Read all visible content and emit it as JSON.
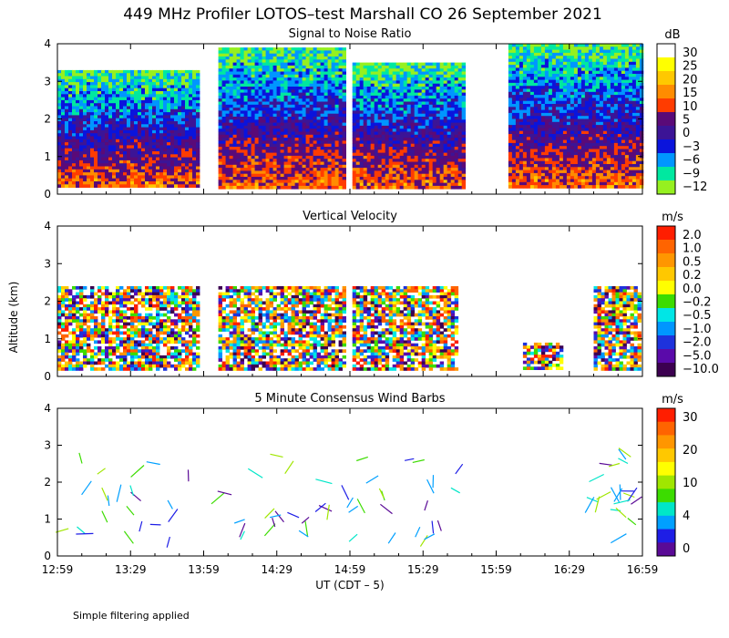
{
  "main_title": "449 MHz Profiler LOTOS–test Marshall CO 26 September 2021",
  "y_axis_label": "Altitude (km)",
  "x_axis_label": "UT  (CDT – 5)",
  "footer_note": "Simple filtering applied",
  "x_ticks": [
    "12:59",
    "13:29",
    "13:59",
    "14:29",
    "14:59",
    "15:29",
    "15:59",
    "16:29",
    "16:59"
  ],
  "y_ticks": [
    "0",
    "1",
    "2",
    "3",
    "4"
  ],
  "chart_data": [
    {
      "type": "heatmap",
      "title": "Signal to Noise Ratio",
      "unit": "dB",
      "ylim": [
        0,
        4
      ],
      "colorbar_labels": [
        "30",
        "25",
        "20",
        "15",
        "10",
        "5",
        "0",
        "−3",
        "−6",
        "−9",
        "−12"
      ],
      "colorbar_colors": [
        "#ffffff",
        "#ffff00",
        "#ffc800",
        "#ff8c00",
        "#ff3c00",
        "#5a0a78",
        "#3c1496",
        "#0a14dc",
        "#0096ff",
        "#00e8a0",
        "#96f020"
      ],
      "data_blocks": [
        {
          "t_start": "12:59",
          "t_end": "13:57",
          "alt_top_km": 3.3
        },
        {
          "t_start": "14:05",
          "t_end": "14:56",
          "alt_top_km": 3.9
        },
        {
          "t_start": "15:00",
          "t_end": "15:45",
          "alt_top_km": 3.5
        },
        {
          "t_start": "16:04",
          "t_end": "16:59",
          "alt_top_km": 4.0
        }
      ]
    },
    {
      "type": "heatmap",
      "title": "Vertical Velocity",
      "unit": "m/s",
      "ylim": [
        0,
        4
      ],
      "colorbar_labels": [
        "2.0",
        "1.0",
        "0.5",
        "0.2",
        "0.0",
        "−0.2",
        "−0.5",
        "−1.0",
        "−2.0",
        "−5.0",
        "−10.0"
      ],
      "colorbar_colors": [
        "#ff1e00",
        "#ff6400",
        "#ff9600",
        "#ffc800",
        "#ffff00",
        "#3cdc00",
        "#00e6e6",
        "#0096ff",
        "#1e32dc",
        "#5a0aaa",
        "#3c0050"
      ],
      "data_blocks": [
        {
          "t_start": "12:59",
          "t_end": "13:57",
          "alt_top_km": 2.4
        },
        {
          "t_start": "14:05",
          "t_end": "14:56",
          "alt_top_km": 2.4
        },
        {
          "t_start": "15:00",
          "t_end": "15:43",
          "alt_top_km": 2.4
        },
        {
          "t_start": "16:10",
          "t_end": "16:26",
          "alt_top_km": 0.9
        },
        {
          "t_start": "16:39",
          "t_end": "16:57",
          "alt_top_km": 2.4
        }
      ]
    },
    {
      "type": "scatter",
      "title": "5 Minute Consensus Wind Barbs",
      "unit": "m/s",
      "ylim": [
        0,
        4
      ],
      "colorbar_labels": [
        "30",
        "20",
        "10",
        "4",
        "0"
      ],
      "colorbar_colors": [
        "#ff1e00",
        "#ff6400",
        "#ff9600",
        "#ffc800",
        "#ffff00",
        "#a0e600",
        "#3cdc00",
        "#00e6c8",
        "#00a0ff",
        "#1e1ee6",
        "#5a0a96"
      ]
    }
  ]
}
